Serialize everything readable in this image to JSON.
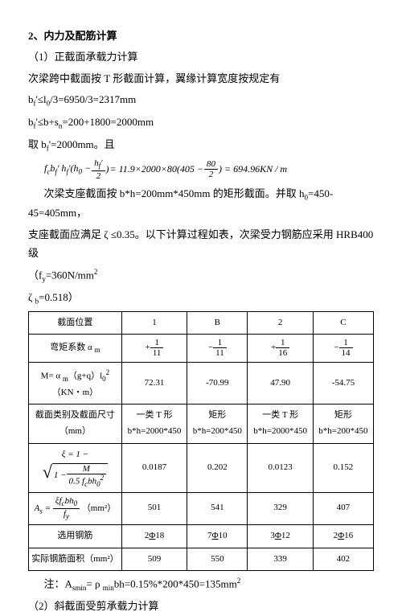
{
  "title": "2、内力及配筋计算",
  "p1": "（1）正截面承载力计算",
  "p2": "次梁跨中截面按 T 形截面计算，翼缘计算宽度按规定有",
  "p3_a": "b",
  "p3_b": "≤l",
  "p3_c": "/3=6950/3=2317mm",
  "p4_a": "b",
  "p4_b": "≤b+s",
  "p4_c": "=200+1800=2000mm",
  "p5_a": "取 b",
  "p5_b": "=2000mm。且",
  "formula1": {
    "lhs_vars": "f",
    "rest": "= 11.9×2000×80(405 − ",
    "rest2": ") = 694.96KN / m"
  },
  "p6_a": "次梁支座截面按 b*h=200mm*450mm 的矩形截面。并取 h",
  "p6_b": "=450-45=405mm，",
  "p7": "支座截面应满足 ζ ≤0.35。以下计算过程如表，次梁受力钢筋应采用 HRB400 级",
  "p8_a": "（f",
  "p8_b": "=360N/mm",
  "p9_a": "ζ ",
  "p9_b": "=0.518）",
  "table": {
    "headers": [
      "截面位置",
      "1",
      "B",
      "2",
      "C"
    ],
    "row1_label_a": "弯矩系数 α ",
    "row1_cells": [
      "11",
      "11",
      "16",
      "14"
    ],
    "row1_signs": [
      "+",
      "−",
      "+",
      "−"
    ],
    "row2_label_a": "M= α ",
    "row2_label_b": "（g+q）l",
    "row2_label_c": "（KN・m）",
    "row2_cells": [
      "72.31",
      "-70.99",
      "47.90",
      "-54.75"
    ],
    "row3_label": "截面类别及截面尺寸（mm）",
    "row3_cells_a": [
      "一类 T 形",
      "矩形",
      "一类 T 形",
      "矩形"
    ],
    "row3_cells_b": [
      "b*h=2000*450",
      "b*h=200*450",
      "b*h=2000*450",
      "b*h=200*450"
    ],
    "row4_cells": [
      "0.0187",
      "0.202",
      "0.0123",
      "0.152"
    ],
    "row5_label_unit": "（mm²）",
    "row5_cells": [
      "501",
      "541",
      "329",
      "407"
    ],
    "row6_label": "选用钢筋",
    "row6_counts": [
      "2",
      "7",
      "3",
      "2"
    ],
    "row6_dias": [
      "18",
      "10",
      "12",
      "16"
    ],
    "row7_label": "实际钢筋面积（mm²）",
    "row7_cells": [
      "509",
      "550",
      "339",
      "402"
    ]
  },
  "note1_a": "注：A",
  "note1_b": "= ρ ",
  "note1_c": "bh=0.15%*200*450=135mm",
  "p10": "（2）斜截面受剪承载力计算"
}
